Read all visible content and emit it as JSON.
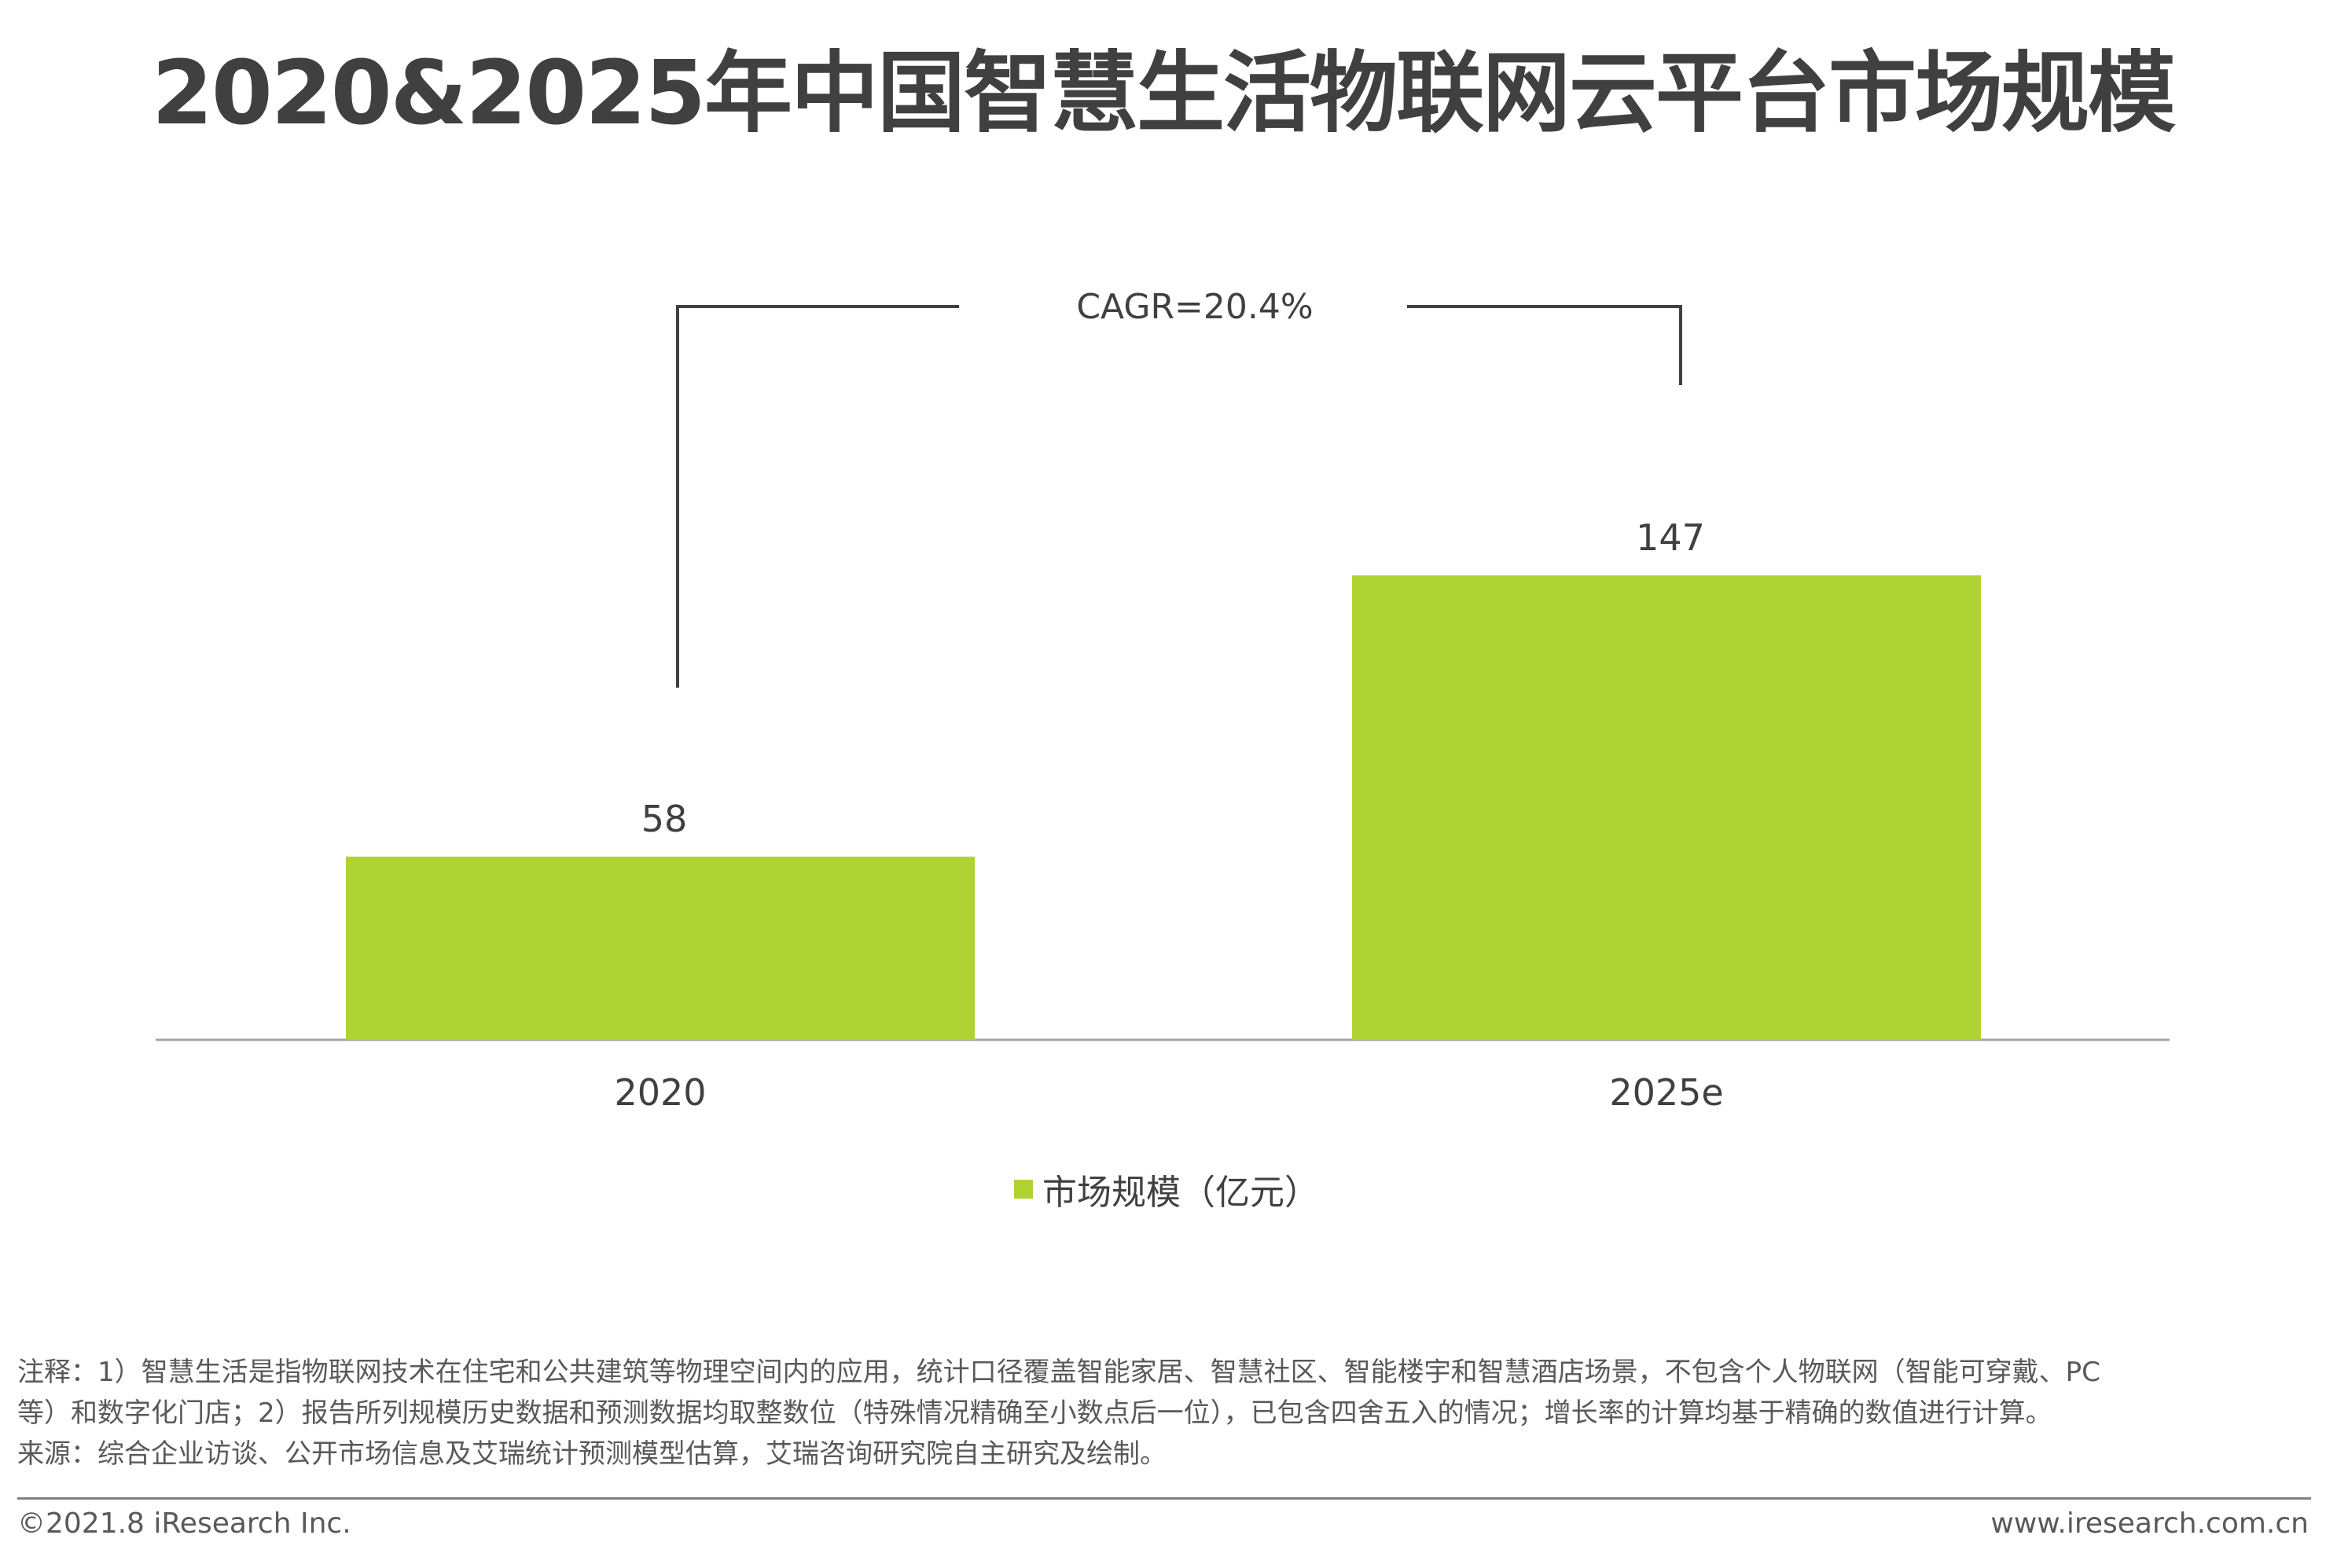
{
  "title": "2020&2025年中国智慧生活物联网云平台市场规模",
  "chart_data": {
    "type": "bar",
    "categories": [
      "2020",
      "2025e"
    ],
    "series": [
      {
        "name": "市场规模（亿元）",
        "values": [
          58,
          147
        ],
        "color": "#b0d334"
      }
    ],
    "data_labels": [
      "58",
      "147"
    ],
    "annotation": "CAGR=20.4%",
    "ylim": [
      0,
      155
    ],
    "grid": false,
    "legend_position": "bottom-center"
  },
  "legend": {
    "label": "市场规模（亿元）",
    "color": "#b0d334"
  },
  "notes": {
    "line1": "注释：1）智慧生活是指物联网技术在住宅和公共建筑等物理空间内的应用，统计口径覆盖智能家居、智慧社区、智能楼宇和智慧酒店场景，不包含个人物联网（智能可穿戴、PC",
    "line2": "等）和数字化门店；2）报告所列规模历史数据和预测数据均取整数位（特殊情况精确至小数点后一位），已包含四舍五入的情况；增长率的计算均基于精确的数值进行计算。",
    "line3": "来源：综合企业访谈、公开市场信息及艾瑞统计预测模型估算，艾瑞咨询研究院自主研究及绘制。"
  },
  "footer": {
    "copyright": "©2021.8 iResearch Inc.",
    "website": "www.iresearch.com.cn"
  }
}
